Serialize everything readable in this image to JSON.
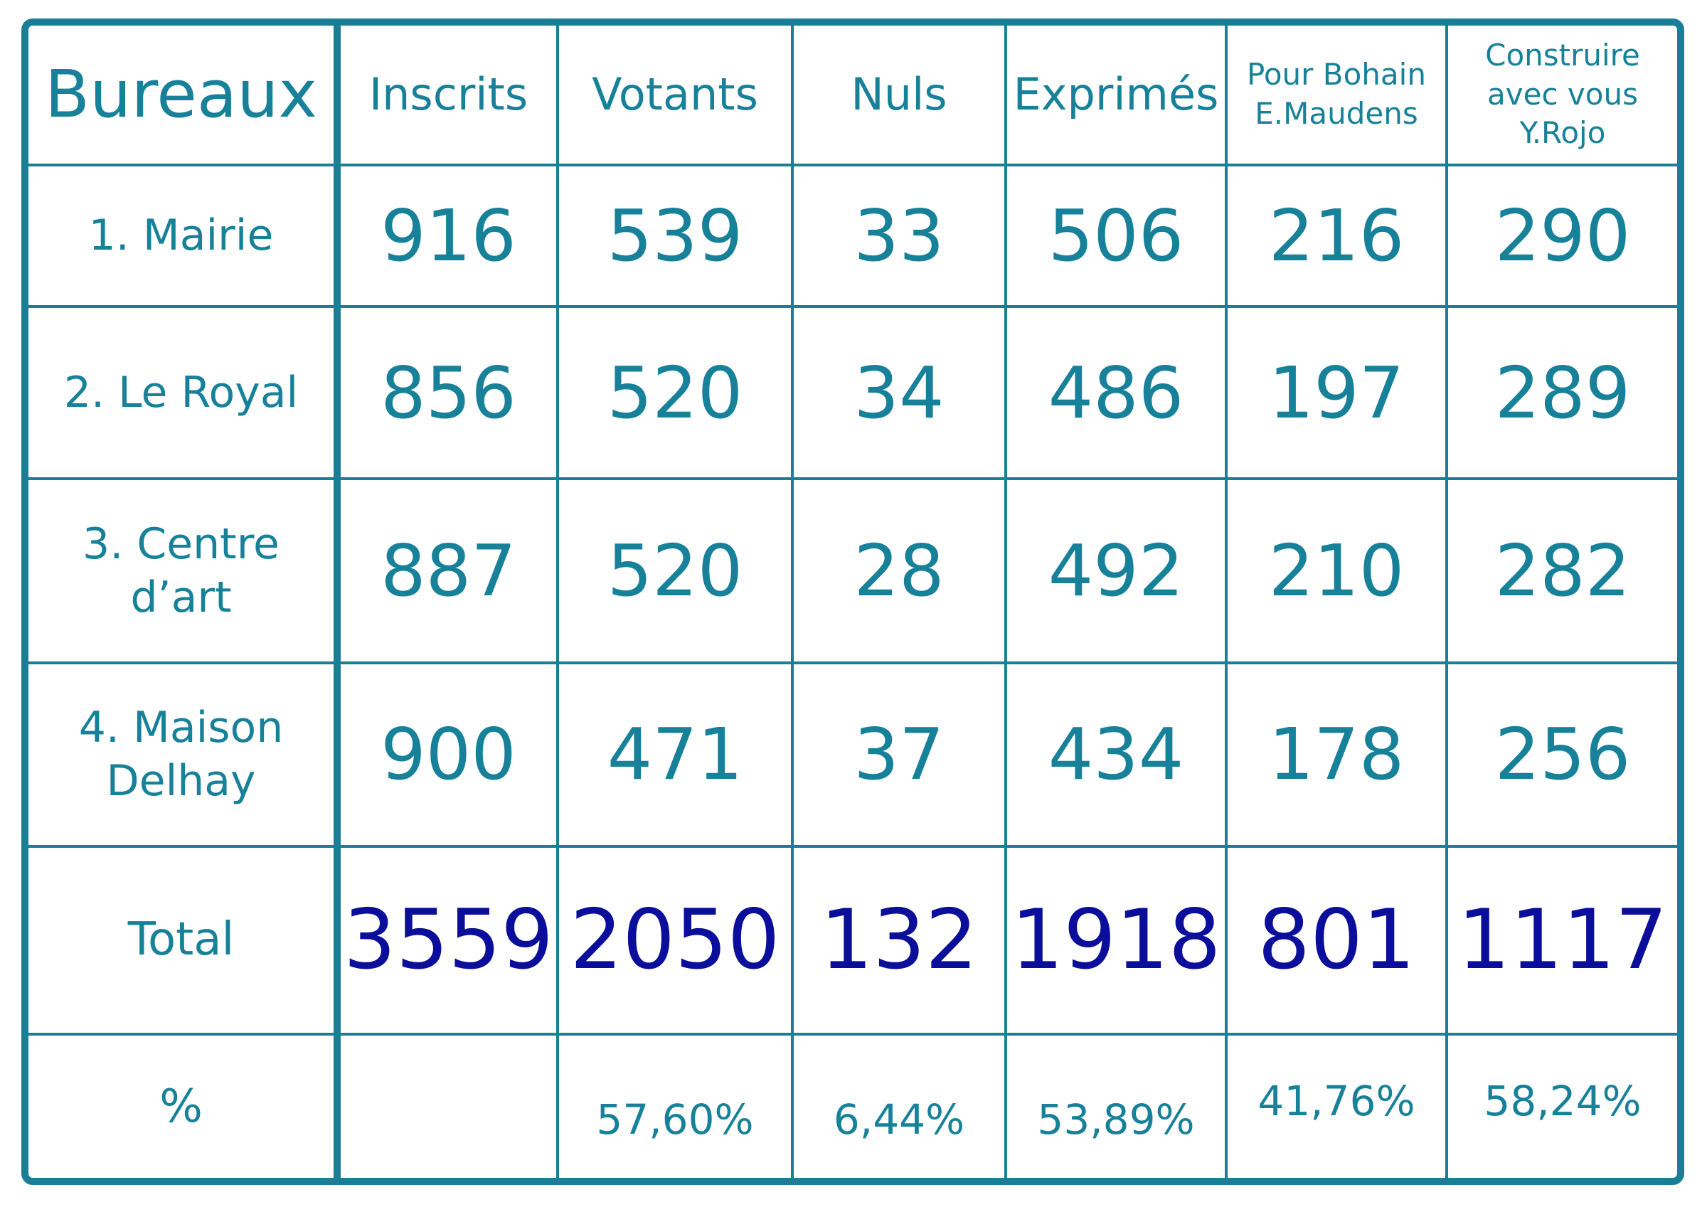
{
  "headers": {
    "bureaux": "Bureaux",
    "inscrits": "Inscrits",
    "votants": "Votants",
    "nuls": "Nuls",
    "exprimes": "Exprimés",
    "maudens": [
      "Pour Bohain",
      "E.Maudens"
    ],
    "rojo": [
      "Construire",
      "avec vous",
      "Y.Rojo"
    ]
  },
  "rows": [
    {
      "bureau": [
        "1. Mairie"
      ],
      "inscrits": "916",
      "votants": "539",
      "nuls": "33",
      "exprimes": "506",
      "maudens": "216",
      "rojo": "290"
    },
    {
      "bureau": [
        "2. Le Royal"
      ],
      "inscrits": "856",
      "votants": "520",
      "nuls": "34",
      "exprimes": "486",
      "maudens": "197",
      "rojo": "289"
    },
    {
      "bureau": [
        "3. Centre",
        "d’art"
      ],
      "inscrits": "887",
      "votants": "520",
      "nuls": "28",
      "exprimes": "492",
      "maudens": "210",
      "rojo": "282"
    },
    {
      "bureau": [
        "4. Maison",
        "Delhay"
      ],
      "inscrits": "900",
      "votants": "471",
      "nuls": "37",
      "exprimes": "434",
      "maudens": "178",
      "rojo": "256"
    }
  ],
  "total": {
    "label": "Total",
    "inscrits": "3559",
    "votants": "2050",
    "nuls": "132",
    "exprimes": "1918",
    "maudens": "801",
    "rojo": "1117"
  },
  "percent": {
    "label": "%",
    "inscrits": "",
    "votants": "57,60%",
    "nuls": "6,44%",
    "exprimes": "53,89%",
    "maudens": "41,76%",
    "rojo": "58,24%"
  },
  "colors": {
    "border": "#1a7f96",
    "text": "#17819a",
    "total": "#0a0e9a"
  }
}
